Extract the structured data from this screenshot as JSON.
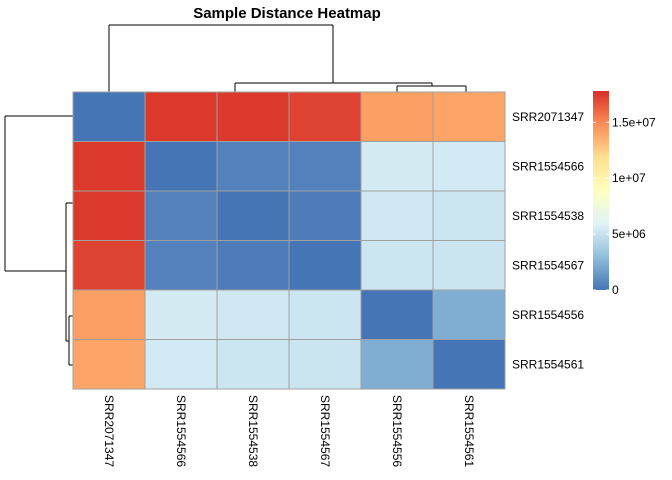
{
  "chart_data": {
    "type": "heatmap",
    "title": "Sample Distance Heatmap",
    "rows": [
      "SRR2071347",
      "SRR1554566",
      "SRR1554538",
      "SRR1554567",
      "SRR1554556",
      "SRR1554561"
    ],
    "cols": [
      "SRR2071347",
      "SRR1554566",
      "SRR1554538",
      "SRR1554567",
      "SRR1554556",
      "SRR1554561"
    ],
    "values": [
      [
        0,
        17500000,
        17500000,
        17200000,
        14200000,
        14000000
      ],
      [
        17500000,
        0,
        500000,
        500000,
        5500000,
        5400000
      ],
      [
        17500000,
        500000,
        0,
        300000,
        5300000,
        5200000
      ],
      [
        17200000,
        500000,
        300000,
        0,
        5200000,
        5100000
      ],
      [
        14200000,
        5500000,
        5300000,
        5200000,
        0,
        2300000
      ],
      [
        14000000,
        5400000,
        5200000,
        5100000,
        2300000,
        0
      ]
    ],
    "color_scale": {
      "min": 0,
      "max": 17800000,
      "stops": [
        "#4575B4",
        "#91BFDB",
        "#E0F3F8",
        "#FFFFBF",
        "#FEE090",
        "#FC8D59",
        "#D73027"
      ]
    },
    "legend": {
      "position": "right",
      "ticks": [
        {
          "value": 0,
          "label": "0"
        },
        {
          "value": 5000000,
          "label": "5e+06"
        },
        {
          "value": 10000000,
          "label": "1e+07"
        },
        {
          "value": 15000000,
          "label": "1.5e+07"
        }
      ]
    },
    "row_dendrogram": true,
    "col_dendrogram": true,
    "grid_color": "#A0A0A0"
  }
}
